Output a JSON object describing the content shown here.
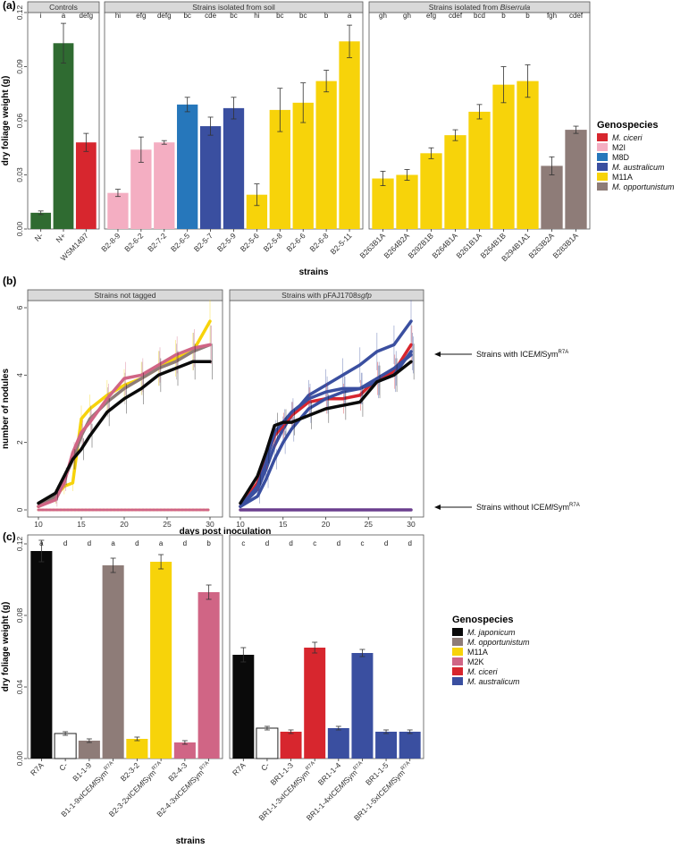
{
  "panels": {
    "a": "(a)",
    "b": "(b)",
    "c": "(c)"
  },
  "colors": {
    "M. ciceri": "#d7262e",
    "M2I": "#f4aec2",
    "M8D": "#2677bb",
    "M. australicum": "#3a4fa0",
    "M11A": "#f7d30a",
    "M. opportunistum": "#8e7c78",
    "M. japonicum": "#0a0a0a",
    "M2K": "#d06585",
    "control": "#2f6b31",
    "empty": "#ffffff"
  },
  "chart_data": [
    {
      "type": "bar",
      "id": "a",
      "ylabel": "dry foliage weight (g)",
      "xlabel": "strains",
      "ylim": [
        0,
        0.12
      ],
      "yticks": [
        "0.00",
        "0.03",
        "0.06",
        "0.09",
        "0.12"
      ],
      "facets": [
        {
          "title": "Controls",
          "bars": [
            {
              "label": "N-",
              "value": 0.009,
              "err": 0.001,
              "sig": "i",
              "group": "control"
            },
            {
              "label": "N+",
              "value": 0.103,
              "err": 0.011,
              "sig": "a",
              "group": "control"
            },
            {
              "label": "WSM1497",
              "value": 0.048,
              "err": 0.005,
              "sig": "defg",
              "group": "M. ciceri"
            }
          ]
        },
        {
          "title": "Strains isolated from soil",
          "bars": [
            {
              "label": "B2-8-9",
              "value": 0.02,
              "err": 0.002,
              "sig": "hi",
              "group": "M2I"
            },
            {
              "label": "B2-6-2",
              "value": 0.044,
              "err": 0.007,
              "sig": "efg",
              "group": "M2I"
            },
            {
              "label": "B2-7-2",
              "value": 0.048,
              "err": 0.001,
              "sig": "defg",
              "group": "M2I"
            },
            {
              "label": "B2-6-5",
              "value": 0.069,
              "err": 0.004,
              "sig": "bc",
              "group": "M8D"
            },
            {
              "label": "B2-5-7",
              "value": 0.057,
              "err": 0.005,
              "sig": "cde",
              "group": "M. australicum"
            },
            {
              "label": "B2-5-9",
              "value": 0.067,
              "err": 0.006,
              "sig": "bc",
              "group": "M. australicum"
            },
            {
              "label": "B2-5-6",
              "value": 0.019,
              "err": 0.006,
              "sig": "hi",
              "group": "M11A"
            },
            {
              "label": "B2-5-8",
              "value": 0.066,
              "err": 0.012,
              "sig": "bc",
              "group": "M11A"
            },
            {
              "label": "B2-6-6",
              "value": 0.07,
              "err": 0.011,
              "sig": "bc",
              "group": "M11A"
            },
            {
              "label": "B2-6-8",
              "value": 0.082,
              "err": 0.006,
              "sig": "b",
              "group": "M11A"
            },
            {
              "label": "B2-5-11",
              "value": 0.104,
              "err": 0.009,
              "sig": "a",
              "group": "M11A"
            }
          ]
        },
        {
          "title": "Strains isolated from Biserrula",
          "bars": [
            {
              "label": "B263B1A",
              "value": 0.028,
              "err": 0.004,
              "sig": "gh",
              "group": "M11A"
            },
            {
              "label": "B264B2A",
              "value": 0.03,
              "err": 0.003,
              "sig": "gh",
              "group": "M11A"
            },
            {
              "label": "B292B1B",
              "value": 0.042,
              "err": 0.003,
              "sig": "efg",
              "group": "M11A"
            },
            {
              "label": "B264B1A",
              "value": 0.052,
              "err": 0.003,
              "sig": "cdef",
              "group": "M11A"
            },
            {
              "label": "B261B1A",
              "value": 0.065,
              "err": 0.004,
              "sig": "bcd",
              "group": "M11A"
            },
            {
              "label": "B264B1B",
              "value": 0.08,
              "err": 0.01,
              "sig": "b",
              "group": "M11A"
            },
            {
              "label": "B294B1A1",
              "value": 0.082,
              "err": 0.009,
              "sig": "b",
              "group": "M11A"
            },
            {
              "label": "B263B2A",
              "value": 0.035,
              "err": 0.005,
              "sig": "fgh",
              "group": "M. opportunistum"
            },
            {
              "label": "B283B1A",
              "value": 0.055,
              "err": 0.002,
              "sig": "cdef",
              "group": "M. opportunistum"
            }
          ]
        }
      ],
      "legend": {
        "title": "Genospecies",
        "entries": [
          "M. ciceri",
          "M2I",
          "M8D",
          "M. australicum",
          "M11A",
          "M. opportunistum"
        ]
      }
    },
    {
      "type": "line",
      "id": "b",
      "ylabel": "number of nodules",
      "xlabel": "days post inoculation",
      "xlim": [
        10,
        30
      ],
      "ylim": [
        0,
        6
      ],
      "xticks": [
        "10",
        "15",
        "20",
        "25",
        "30"
      ],
      "yticks": [
        "0",
        "2",
        "4",
        "6"
      ],
      "facets": [
        {
          "title": "Strains not tagged",
          "x": [
            10,
            12,
            13,
            14,
            15,
            16,
            18,
            20,
            22,
            24,
            26,
            28,
            30
          ],
          "series": [
            {
              "name": "M11A",
              "color": "#f7d30a",
              "values": [
                0.1,
                0.4,
                0.7,
                0.8,
                2.7,
                3.0,
                3.4,
                3.7,
                3.9,
                4.2,
                4.5,
                4.7,
                5.6
              ]
            },
            {
              "name": "M. opportunistum",
              "color": "#8e7c78",
              "values": [
                0.1,
                0.4,
                0.9,
                1.5,
                2.2,
                2.7,
                3.2,
                3.6,
                3.9,
                4.2,
                4.4,
                4.7,
                4.9
              ]
            },
            {
              "name": "M2K",
              "color": "#d06585",
              "values": [
                0.1,
                0.3,
                0.8,
                1.7,
                2.3,
                2.6,
                3.3,
                3.9,
                4.0,
                4.3,
                4.6,
                4.8,
                4.9
              ]
            },
            {
              "name": "M. japonicum",
              "color": "#0a0a0a",
              "values": [
                0.2,
                0.5,
                1.0,
                1.5,
                1.8,
                2.2,
                2.9,
                3.3,
                3.6,
                4.0,
                4.2,
                4.4,
                4.4
              ]
            },
            {
              "name": "M11A",
              "color": "#f7d30a",
              "values": [
                0,
                0,
                0,
                0,
                0,
                0,
                0,
                0,
                0,
                0,
                0,
                0,
                0
              ],
              "dashed": true
            },
            {
              "name": "M2K",
              "color": "#d06585",
              "values": [
                0,
                0,
                0,
                0,
                0,
                0,
                0,
                0,
                0,
                0,
                0,
                0,
                0
              ],
              "dashed": true
            }
          ]
        },
        {
          "title": "Strains with pFAJ1708sgfp",
          "x": [
            10,
            12,
            13,
            14,
            15,
            16,
            18,
            20,
            22,
            24,
            26,
            28,
            30
          ],
          "series": [
            {
              "name": "M. australicum",
              "color": "#3a4fa0",
              "values": [
                0.1,
                0.6,
                1.2,
                1.9,
                2.4,
                2.8,
                3.4,
                3.7,
                4.0,
                4.3,
                4.7,
                4.9,
                5.6
              ]
            },
            {
              "name": "M. ciceri",
              "color": "#d7262e",
              "values": [
                0.1,
                0.8,
                1.5,
                2.2,
                2.5,
                2.8,
                3.2,
                3.3,
                3.3,
                3.4,
                3.9,
                4.1,
                4.9
              ]
            },
            {
              "name": "M. australicum",
              "color": "#3a4fa0",
              "values": [
                0.1,
                0.7,
                1.4,
                2.3,
                2.6,
                2.9,
                3.3,
                3.5,
                3.6,
                3.6,
                3.8,
                4.0,
                4.7
              ]
            },
            {
              "name": "M. australicum",
              "color": "#3a4fa0",
              "values": [
                0.1,
                0.4,
                0.9,
                1.5,
                2.0,
                2.4,
                3.0,
                3.3,
                3.5,
                3.6,
                3.9,
                4.2,
                4.6
              ]
            },
            {
              "name": "M. japonicum",
              "color": "#0a0a0a",
              "values": [
                0.2,
                1.0,
                1.7,
                2.5,
                2.6,
                2.6,
                2.8,
                3.0,
                3.1,
                3.2,
                3.8,
                4.0,
                4.4
              ]
            },
            {
              "name": "no ICE",
              "color": "#6a3e8e",
              "values": [
                0,
                0,
                0,
                0,
                0,
                0,
                0,
                0,
                0,
                0,
                0,
                0,
                0
              ]
            }
          ]
        }
      ],
      "annotations": [
        {
          "prefix": "Strains with ICE",
          "italic": "Ml",
          "suffix": "Sym",
          "sup": "R7A"
        },
        {
          "prefix": "Strains without ICE",
          "italic": "Ml",
          "suffix": "Sym",
          "sup": "R7A"
        }
      ]
    },
    {
      "type": "bar",
      "id": "c",
      "ylabel": "dry foliage weight (g)",
      "xlabel": "strains",
      "ylim": [
        0,
        0.125
      ],
      "yticks": [
        "0.00",
        "0.04",
        "0.08",
        "0.12"
      ],
      "facets": [
        {
          "title": "",
          "bars": [
            {
              "label": "R7A",
              "value": 0.116,
              "err": 0.006,
              "sig": "a",
              "group": "M. japonicum"
            },
            {
              "label": "C-",
              "value": 0.014,
              "err": 0.001,
              "sig": "d",
              "group": "empty"
            },
            {
              "label": "B1-1-9",
              "value": 0.01,
              "err": 0.001,
              "sig": "d",
              "group": "M. opportunistum"
            },
            {
              "label": "B1-1-9xICEMlSymR7A",
              "value": 0.108,
              "err": 0.004,
              "sig": "a",
              "group": "M. opportunistum"
            },
            {
              "label": "B2-3-2",
              "value": 0.011,
              "err": 0.001,
              "sig": "d",
              "group": "M11A"
            },
            {
              "label": "B2-3-2xICEMlSymR7A",
              "value": 0.11,
              "err": 0.004,
              "sig": "a",
              "group": "M11A"
            },
            {
              "label": "B2-4-3",
              "value": 0.009,
              "err": 0.001,
              "sig": "d",
              "group": "M2K"
            },
            {
              "label": "B2-4-3xICEMlSymR7A",
              "value": 0.093,
              "err": 0.004,
              "sig": "b",
              "group": "M2K"
            }
          ]
        },
        {
          "title": "",
          "bars": [
            {
              "label": "R7A",
              "value": 0.058,
              "err": 0.004,
              "sig": "c",
              "group": "M. japonicum"
            },
            {
              "label": "C-",
              "value": 0.017,
              "err": 0.001,
              "sig": "d",
              "group": "empty"
            },
            {
              "label": "BR1-1-3",
              "value": 0.015,
              "err": 0.001,
              "sig": "d",
              "group": "M. ciceri"
            },
            {
              "label": "BR1-1-3xICEMlSymR7A",
              "value": 0.062,
              "err": 0.003,
              "sig": "c",
              "group": "M. ciceri"
            },
            {
              "label": "BR1-1-4",
              "value": 0.017,
              "err": 0.001,
              "sig": "d",
              "group": "M. australicum"
            },
            {
              "label": "BR1-1-4xICEMlSymR7A",
              "value": 0.059,
              "err": 0.002,
              "sig": "c",
              "group": "M. australicum"
            },
            {
              "label": "BR1-1-5",
              "value": 0.015,
              "err": 0.001,
              "sig": "d",
              "group": "M. australicum"
            },
            {
              "label": "BR1-1-5xICEMlSymR7A",
              "value": 0.015,
              "err": 0.001,
              "sig": "d",
              "group": "M. australicum"
            }
          ]
        }
      ],
      "legend": {
        "title": "Genospecies",
        "entries": [
          "M. japonicum",
          "M. opportunistum",
          "M11A",
          "M2K",
          "M. ciceri",
          "M. australicum"
        ]
      }
    }
  ]
}
